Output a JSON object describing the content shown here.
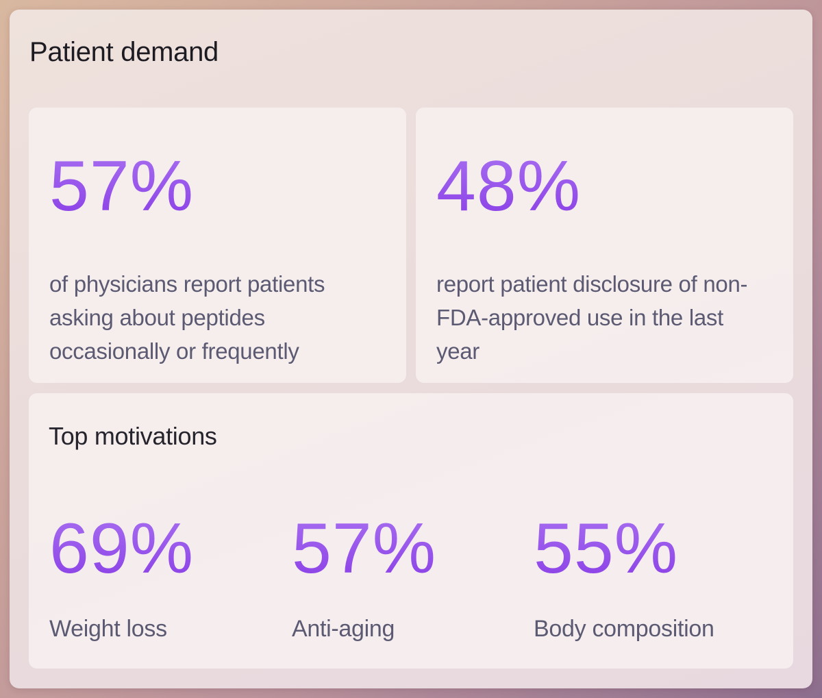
{
  "panel": {
    "title": "Patient demand"
  },
  "stats": [
    {
      "value": "57%",
      "text": "of physicians report patients asking about peptides occasionally or frequently"
    },
    {
      "value": "48%",
      "text": "report patient disclosure of non-FDA-approved use in the last year"
    }
  ],
  "motivations": {
    "title": "Top motivations",
    "items": [
      {
        "value": "69%",
        "label": "Weight loss"
      },
      {
        "value": "57%",
        "label": "Anti-aging"
      },
      {
        "value": "55%",
        "label": "Body composition"
      }
    ]
  },
  "colors": {
    "accent_top": "#a76ef0",
    "accent_bottom": "#8a3fe6",
    "body_text": "#5b5a72",
    "heading_text": "#1d1b22"
  }
}
